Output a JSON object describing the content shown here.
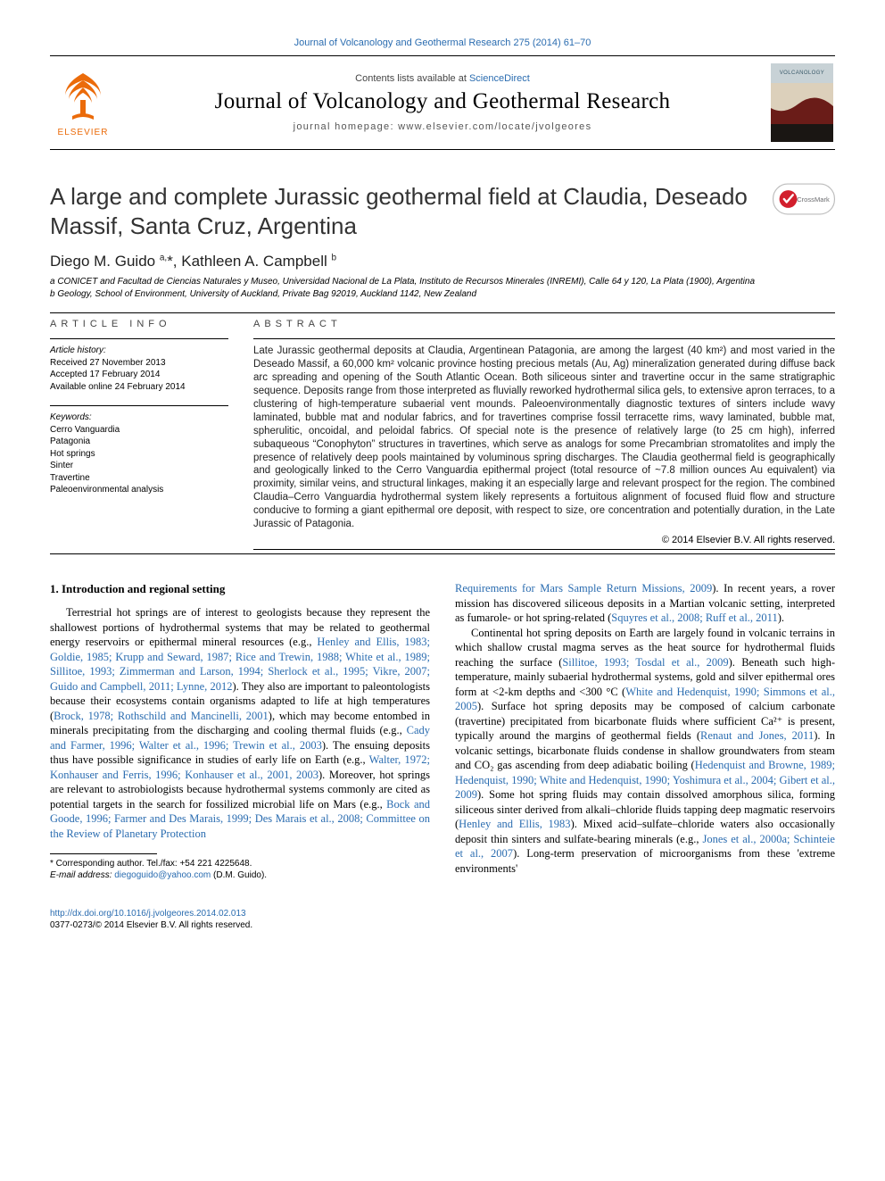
{
  "top_link": "Journal of Volcanology and Geothermal Research 275 (2014) 61–70",
  "masthead": {
    "contents_prefix": "Contents lists available at ",
    "contents_link": "ScienceDirect",
    "journal_name": "Journal of Volcanology and Geothermal Research",
    "homepage_label": "journal homepage: www.elsevier.com/locate/jvolgeores",
    "elsevier_logo_alt": "Elsevier tree logo",
    "cover_alt": "Volcanology journal cover"
  },
  "logos": {
    "elsevier_orange": "#eb6b0a",
    "elsevier_text": "ELSEVIER",
    "cover_title": "VOLCANOLOGY",
    "cover_top_color": "#9aa8b0",
    "cover_mid_color": "#6a1c18",
    "cover_bot_color": "#1a1613"
  },
  "crossmark": {
    "label": "CrossMark",
    "badge_color": "#808285",
    "check_color": "#d21f2d"
  },
  "article": {
    "title": "A large and complete Jurassic geothermal field at Claudia, Deseado Massif, Santa Cruz, Argentina",
    "authors_html": "Diego M. Guido <sup>a,</sup>*, Kathleen A. Campbell <sup>b</sup>",
    "affiliations": {
      "a": "a CONICET and Facultad de Ciencias Naturales y Museo, Universidad Nacional de La Plata, Instituto de Recursos Minerales (INREMI), Calle 64 y 120, La Plata (1900), Argentina",
      "b": "b Geology, School of Environment, University of Auckland, Private Bag 92019, Auckland 1142, New Zealand"
    }
  },
  "info": {
    "heading": "ARTICLE INFO",
    "history_label": "Article history:",
    "received": "Received 27 November 2013",
    "accepted": "Accepted 17 February 2014",
    "available": "Available online 24 February 2014",
    "keywords_label": "Keywords:",
    "keywords": [
      "Cerro Vanguardia",
      "Patagonia",
      "Hot springs",
      "Sinter",
      "Travertine",
      "Paleoenvironmental analysis"
    ]
  },
  "abstract": {
    "heading": "ABSTRACT",
    "text": "Late Jurassic geothermal deposits at Claudia, Argentinean Patagonia, are among the largest (40 km²) and most varied in the Deseado Massif, a 60,000 km² volcanic province hosting precious metals (Au, Ag) mineralization generated during diffuse back arc spreading and opening of the South Atlantic Ocean. Both siliceous sinter and travertine occur in the same stratigraphic sequence. Deposits range from those interpreted as fluvially reworked hydrothermal silica gels, to extensive apron terraces, to a clustering of high-temperature subaerial vent mounds. Paleoenvironmentally diagnostic textures of sinters include wavy laminated, bubble mat and nodular fabrics, and for travertines comprise fossil terracette rims, wavy laminated, bubble mat, spherulitic, oncoidal, and peloidal fabrics. Of special note is the presence of relatively large (to 25 cm high), inferred subaqueous “Conophyton” structures in travertines, which serve as analogs for some Precambrian stromatolites and imply the presence of relatively deep pools maintained by voluminous spring discharges. The Claudia geothermal field is geographically and geologically linked to the Cerro Vanguardia epithermal project (total resource of ~7.8 million ounces Au equivalent) via proximity, similar veins, and structural linkages, making it an especially large and relevant prospect for the region. The combined Claudia–Cerro Vanguardia hydrothermal system likely represents a fortuitous alignment of focused fluid flow and structure conducive to forming a giant epithermal ore deposit, with respect to size, ore concentration and potentially duration, in the Late Jurassic of Patagonia.",
    "copyright": "© 2014 Elsevier B.V. All rights reserved."
  },
  "body": {
    "section_heading": "1. Introduction and regional setting",
    "left_p1_a": "Terrestrial hot springs are of interest to geologists because they represent the shallowest portions of hydrothermal systems that may be related to geothermal energy reservoirs or epithermal mineral resources (e.g., ",
    "left_p1_link1": "Henley and Ellis, 1983; Goldie, 1985; Krupp and Seward, 1987; Rice and Trewin, 1988; White et al., 1989; Sillitoe, 1993; Zimmerman and Larson, 1994; Sherlock et al., 1995; Vikre, 2007; Guido and Campbell, 2011; Lynne, 2012",
    "left_p1_b": "). They also are important to paleontologists because their ecosystems contain organisms adapted to life at high temperatures (",
    "left_p1_link2": "Brock, 1978; Rothschild and Mancinelli, 2001",
    "left_p1_c": "), which may become entombed in minerals precipitating from the discharging and cooling thermal fluids (e.g., ",
    "left_p1_link3": "Cady and Farmer, 1996; Walter et al., 1996; Trewin et al., 2003",
    "left_p1_d": "). The ensuing deposits thus have possible significance in studies of early life on Earth (e.g., ",
    "left_p1_link4": "Walter, 1972; Konhauser and Ferris, 1996; Konhauser et al., 2001, 2003",
    "left_p1_e": "). Moreover, hot springs are relevant to astrobiologists because hydrothermal systems commonly are cited as potential targets in the search for fossilized microbial life on Mars (e.g., ",
    "left_p1_link5": "Bock and Goode, 1996; Farmer and Des Marais, 1999; Des Marais et al., 2008; Committee on the Review of Planetary Protection",
    "right_p1_link_cont": "Requirements for Mars Sample Return Missions, 2009",
    "right_p1_a": "). In recent years, a rover mission has discovered siliceous deposits in a Martian volcanic setting, interpreted as fumarole- or hot spring-related (",
    "right_p1_link2": "Squyres et al., 2008; Ruff et al., 2011",
    "right_p1_b": ").",
    "right_p2_a": "Continental hot spring deposits on Earth are largely found in volcanic terrains in which shallow crustal magma serves as the heat source for hydrothermal fluids reaching the surface (",
    "right_p2_link1": "Sillitoe, 1993; Tosdal et al., 2009",
    "right_p2_b": "). Beneath such high-temperature, mainly subaerial hydrothermal systems, gold and silver epithermal ores form at <2-km depths and <300 °C (",
    "right_p2_link2": "White and Hedenquist, 1990; Simmons et al., 2005",
    "right_p2_c": "). Surface hot spring deposits may be composed of calcium carbonate (travertine) precipitated from bicarbonate fluids where sufficient Ca²⁺ is present, typically around the margins of geothermal fields (",
    "right_p2_link3": "Renaut and Jones, 2011",
    "right_p2_d": "). In volcanic settings, bicarbonate fluids condense in shallow groundwaters from steam and CO₂ gas ascending from deep adiabatic boiling (",
    "right_p2_link4": "Hedenquist and Browne, 1989; Hedenquist, 1990; White and Hedenquist, 1990; Yoshimura et al., 2004; Gibert et al., 2009",
    "right_p2_e": "). Some hot spring fluids may contain dissolved amorphous silica, forming siliceous sinter derived from alkali–chloride fluids tapping deep magmatic reservoirs (",
    "right_p2_link5": "Henley and Ellis, 1983",
    "right_p2_f": "). Mixed acid–sulfate–chloride waters also occasionally deposit thin sinters and sulfate-bearing minerals (e.g., ",
    "right_p2_link6": "Jones et al., 2000a; Schinteie et al., 2007",
    "right_p2_g": "). Long-term preservation of microorganisms from these 'extreme environments'"
  },
  "footnote": {
    "corr": "* Corresponding author. Tel./fax: +54 221 4225648.",
    "email_label": "E-mail address: ",
    "email": "diegoguido@yahoo.com",
    "email_owner": " (D.M. Guido)."
  },
  "footer": {
    "doi": "http://dx.doi.org/10.1016/j.jvolgeores.2014.02.013",
    "issn_line": "0377-0273/© 2014 Elsevier B.V. All rights reserved."
  }
}
